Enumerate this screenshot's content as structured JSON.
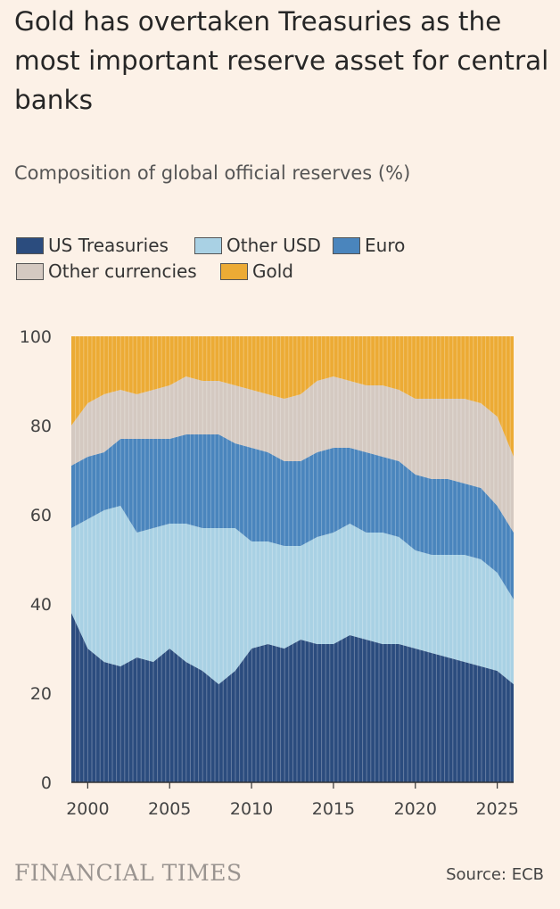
{
  "header": {
    "title": "Gold has overtaken Treasuries as the most important reserve asset for central banks",
    "subtitle": "Composition of global official reserves (%)"
  },
  "legend": [
    {
      "label": "US Treasuries",
      "color": "#2b4c7e"
    },
    {
      "label": "Other USD",
      "color": "#a9d1e4"
    },
    {
      "label": "Euro",
      "color": "#4a85bd"
    },
    {
      "label": "Other currencies",
      "color": "#d4c9c1"
    },
    {
      "label": "Gold",
      "color": "#ecab35"
    }
  ],
  "chart_data": {
    "type": "area",
    "stacked": true,
    "ylim": [
      0,
      100
    ],
    "yticks": [
      "0",
      "20",
      "40",
      "60",
      "80",
      "100"
    ],
    "xlim": [
      1999,
      2026
    ],
    "xticks": [
      "2000",
      "2005",
      "2010",
      "2015",
      "2020",
      "2025"
    ],
    "x": [
      1999,
      2000,
      2001,
      2002,
      2003,
      2004,
      2005,
      2006,
      2007,
      2008,
      2009,
      2010,
      2011,
      2012,
      2013,
      2014,
      2015,
      2016,
      2017,
      2018,
      2019,
      2020,
      2021,
      2022,
      2023,
      2024,
      2025,
      2026
    ],
    "series": [
      {
        "name": "US Treasuries",
        "color": "#2b4c7e",
        "values": [
          38,
          30,
          27,
          26,
          28,
          27,
          30,
          27,
          25,
          22,
          25,
          30,
          31,
          30,
          32,
          31,
          31,
          33,
          32,
          31,
          31,
          30,
          29,
          28,
          27,
          26,
          25,
          22
        ]
      },
      {
        "name": "Other USD",
        "color": "#a9d1e4",
        "values": [
          19,
          29,
          34,
          36,
          28,
          30,
          28,
          31,
          32,
          35,
          32,
          24,
          23,
          23,
          21,
          24,
          25,
          25,
          24,
          25,
          24,
          22,
          22,
          23,
          24,
          24,
          22,
          19
        ]
      },
      {
        "name": "Euro",
        "color": "#4a85bd",
        "values": [
          14,
          14,
          13,
          15,
          21,
          20,
          19,
          20,
          21,
          21,
          19,
          21,
          20,
          19,
          19,
          19,
          19,
          17,
          18,
          17,
          17,
          17,
          17,
          17,
          16,
          16,
          15,
          15
        ]
      },
      {
        "name": "Other currencies",
        "color": "#d4c9c1",
        "values": [
          9,
          12,
          13,
          11,
          10,
          11,
          12,
          13,
          12,
          12,
          13,
          13,
          13,
          14,
          15,
          16,
          16,
          15,
          15,
          16,
          16,
          17,
          18,
          18,
          19,
          19,
          20,
          17
        ]
      },
      {
        "name": "Gold",
        "color": "#ecab35",
        "values": [
          20,
          15,
          13,
          12,
          13,
          12,
          11,
          9,
          10,
          10,
          11,
          12,
          13,
          14,
          13,
          10,
          9,
          10,
          11,
          11,
          12,
          14,
          14,
          14,
          14,
          15,
          18,
          27
        ]
      }
    ]
  },
  "footer": {
    "brand": "FINANCIAL TIMES",
    "source": "Source: ECB"
  }
}
